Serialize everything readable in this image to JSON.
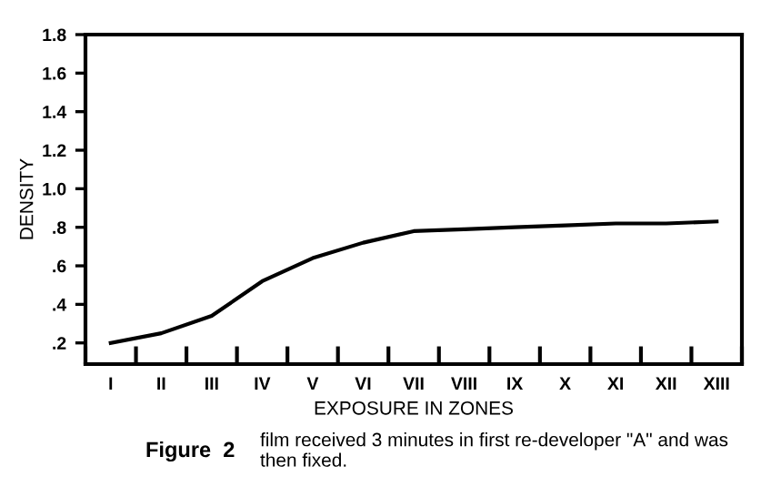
{
  "chart_data": {
    "type": "line",
    "xlabel": "EXPOSURE IN ZONES",
    "ylabel": "DENSITY",
    "categories": [
      "I",
      "II",
      "III",
      "IV",
      "V",
      "VI",
      "VII",
      "VIII",
      "IX",
      "X",
      "XI",
      "XII",
      "XIII"
    ],
    "series": [
      {
        "color": "#000000",
        "values": [
          0.2,
          0.25,
          0.34,
          0.52,
          0.64,
          0.72,
          0.78,
          0.79,
          0.8,
          0.81,
          0.82,
          0.82,
          0.83
        ]
      }
    ],
    "ylim": [
      0.09,
      1.8
    ],
    "yticks": [
      {
        "value": 0.2,
        "label": ".2"
      },
      {
        "value": 0.4,
        "label": ".4"
      },
      {
        "value": 0.6,
        "label": ".6"
      },
      {
        "value": 0.8,
        "label": ".8"
      },
      {
        "value": 1.0,
        "label": "1.0"
      },
      {
        "value": 1.2,
        "label": "1.2"
      },
      {
        "value": 1.4,
        "label": "1.4"
      },
      {
        "value": 1.6,
        "label": "1.6"
      },
      {
        "value": 1.8,
        "label": "1.8"
      }
    ],
    "grid": false,
    "legend": false,
    "marker": "none",
    "line_style": "solid",
    "annotations": [
      "Figure  2",
      "film received 3 minutes in first re-developer \"A\" and was then fixed."
    ]
  }
}
